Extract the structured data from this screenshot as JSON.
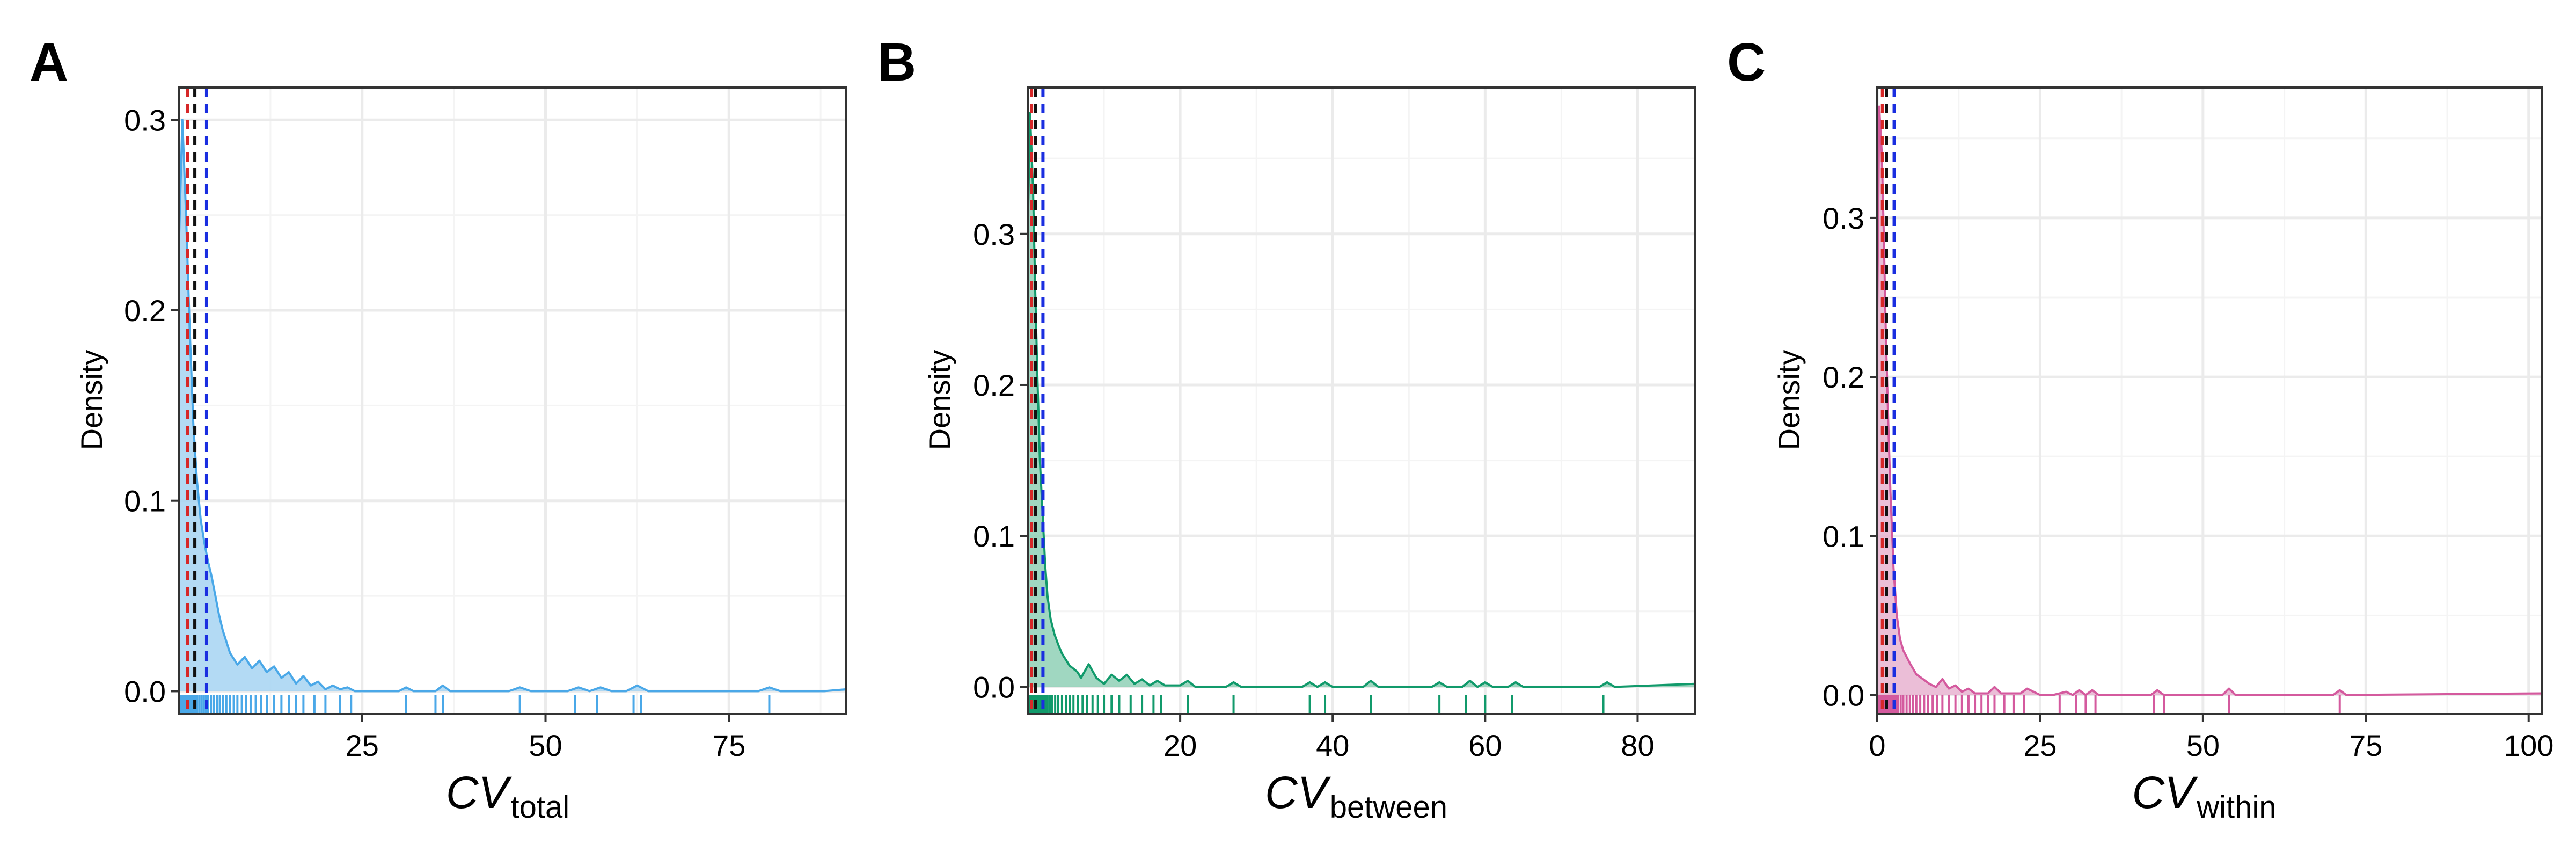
{
  "chart_data": [
    {
      "type": "area",
      "panel": "A",
      "ylabel": "Density",
      "xlabel": "CV",
      "xlabel_sub": "total",
      "xlim": [
        0,
        91
      ],
      "ylim": [
        -0.012,
        0.317
      ],
      "xticks": [
        25,
        50,
        75
      ],
      "xticklabels": [
        "25",
        "50",
        "75"
      ],
      "yticks": [
        0.0,
        0.1,
        0.2,
        0.3
      ],
      "yticklabels": [
        "0.0",
        "0.1",
        "0.2",
        "0.3"
      ],
      "grid": true,
      "color": "#4aa8e8",
      "fill_color": "#a6d4f2",
      "density": {
        "x": [
          0,
          0.5,
          1,
          1.5,
          2,
          2.5,
          3,
          3.5,
          4,
          4.5,
          5,
          5.5,
          6,
          7,
          8,
          9,
          10,
          11,
          12,
          13,
          14,
          15,
          16,
          17,
          18,
          19,
          20,
          21,
          22,
          23,
          24,
          26,
          30,
          31,
          32,
          35,
          36,
          37,
          45,
          46.5,
          48,
          53,
          54.5,
          56,
          57.5,
          59,
          61,
          62.5,
          64,
          70,
          79,
          80.5,
          82,
          88,
          91
        ],
        "y": [
          0.23,
          0.3,
          0.25,
          0.19,
          0.14,
          0.11,
          0.09,
          0.078,
          0.068,
          0.06,
          0.05,
          0.04,
          0.032,
          0.02,
          0.014,
          0.018,
          0.012,
          0.016,
          0.01,
          0.013,
          0.007,
          0.01,
          0.004,
          0.008,
          0.003,
          0.005,
          0.001,
          0.003,
          0.001,
          0.002,
          0,
          0,
          0,
          0.002,
          0,
          0,
          0.003,
          0,
          0,
          0.002,
          0,
          0,
          0.002,
          0,
          0.002,
          0,
          0,
          0.003,
          0,
          0,
          0,
          0.002,
          0,
          0,
          0.001
        ]
      },
      "rug": [
        0.3,
        0.5,
        0.7,
        0.9,
        1.1,
        1.3,
        1.5,
        1.7,
        1.9,
        2.1,
        2.3,
        2.5,
        2.8,
        3.1,
        3.4,
        3.7,
        4.0,
        4.4,
        4.8,
        5.2,
        5.6,
        6.0,
        6.5,
        7.0,
        7.5,
        8.0,
        8.6,
        9.2,
        9.8,
        10.5,
        11.2,
        12.0,
        13.0,
        14.0,
        15.0,
        16.0,
        17.0,
        18.5,
        20.0,
        22.0,
        23.5,
        31,
        35,
        36,
        46.5,
        54,
        57,
        62,
        63,
        80.5
      ],
      "vlines": [
        {
          "x": 1.2,
          "color": "#d62728"
        },
        {
          "x": 2.2,
          "color": "#111111"
        },
        {
          "x": 3.8,
          "color": "#1a2ee0"
        }
      ]
    },
    {
      "type": "area",
      "panel": "B",
      "ylabel": "Density",
      "xlabel": "CV",
      "xlabel_sub": "between",
      "xlim": [
        0,
        87.5
      ],
      "ylim": [
        -0.018,
        0.397
      ],
      "xticks": [
        20,
        40,
        60,
        80
      ],
      "xticklabels": [
        "20",
        "40",
        "60",
        "80"
      ],
      "yticks": [
        0.0,
        0.1,
        0.2,
        0.3
      ],
      "yticklabels": [
        "0.0",
        "0.1",
        "0.2",
        "0.3"
      ],
      "grid": true,
      "color": "#119a6b",
      "fill_color": "#8fd0b6",
      "density": {
        "x": [
          0,
          0.3,
          0.7,
          1,
          1.3,
          1.6,
          2,
          2.3,
          2.6,
          3,
          3.5,
          4,
          4.5,
          5,
          5.5,
          6,
          6.5,
          7,
          8,
          9,
          10,
          11,
          12,
          13,
          14,
          15,
          16,
          17,
          18,
          20,
          21,
          22,
          26,
          27,
          28,
          36,
          37,
          38,
          39,
          40,
          44,
          45,
          46,
          53,
          54,
          55,
          57,
          58,
          59,
          60,
          61,
          63,
          64,
          65,
          75,
          76,
          77,
          87.5
        ],
        "y": [
          0.3,
          0.38,
          0.33,
          0.26,
          0.2,
          0.15,
          0.11,
          0.08,
          0.06,
          0.045,
          0.035,
          0.028,
          0.022,
          0.018,
          0.014,
          0.012,
          0.01,
          0.006,
          0.015,
          0.006,
          0.002,
          0.008,
          0.004,
          0.008,
          0.002,
          0.005,
          0.001,
          0.004,
          0.001,
          0.001,
          0.004,
          0,
          0,
          0.003,
          0,
          0,
          0.003,
          0,
          0.003,
          0,
          0,
          0.004,
          0,
          0,
          0.003,
          0,
          0,
          0.004,
          0,
          0.003,
          0,
          0,
          0.003,
          0,
          0,
          0.003,
          0,
          0.002
        ]
      },
      "rug": [
        0.2,
        0.4,
        0.6,
        0.8,
        1.0,
        1.2,
        1.4,
        1.6,
        1.8,
        2.0,
        2.3,
        2.6,
        2.9,
        3.2,
        3.6,
        4.0,
        4.5,
        5.0,
        5.5,
        6.0,
        6.6,
        7.2,
        7.8,
        8.5,
        9.2,
        10.0,
        11.0,
        12.0,
        13.5,
        15.0,
        16.5,
        17.5,
        21,
        27,
        37,
        39,
        45,
        54,
        57.5,
        60,
        63.5,
        75.5
      ],
      "vlines": [
        {
          "x": 0.5,
          "color": "#d62728"
        },
        {
          "x": 1.0,
          "color": "#111111"
        },
        {
          "x": 2.0,
          "color": "#1a2ee0"
        }
      ]
    },
    {
      "type": "area",
      "panel": "C",
      "ylabel": "Density",
      "xlabel": "CV",
      "xlabel_sub": "within",
      "xlim": [
        0,
        102
      ],
      "ylim": [
        -0.012,
        0.382
      ],
      "xticks": [
        0,
        25,
        50,
        75,
        100
      ],
      "xticklabels": [
        "0",
        "25",
        "50",
        "75",
        "100"
      ],
      "yticks": [
        0.0,
        0.1,
        0.2,
        0.3
      ],
      "yticklabels": [
        "0.0",
        "0.1",
        "0.2",
        "0.3"
      ],
      "grid": true,
      "color": "#d45a9e",
      "fill_color": "#e7b3d0",
      "density": {
        "x": [
          0,
          0.3,
          0.7,
          1,
          1.3,
          1.7,
          2,
          2.5,
          3,
          3.5,
          4,
          5,
          6,
          7,
          8,
          9,
          10,
          11,
          12,
          13,
          14,
          15,
          17,
          18,
          19,
          22,
          23,
          25,
          27,
          29,
          30,
          31,
          32,
          33,
          34,
          35,
          42,
          43,
          44,
          53,
          54,
          55,
          70,
          71,
          72,
          102
        ],
        "y": [
          0.24,
          0.37,
          0.34,
          0.29,
          0.23,
          0.17,
          0.13,
          0.08,
          0.05,
          0.035,
          0.028,
          0.02,
          0.013,
          0.01,
          0.007,
          0.005,
          0.01,
          0.004,
          0.006,
          0.002,
          0.004,
          0.001,
          0.001,
          0.005,
          0.001,
          0.001,
          0.004,
          0,
          0,
          0.002,
          0,
          0.003,
          0,
          0.003,
          0,
          0,
          0,
          0.003,
          0,
          0,
          0.004,
          0,
          0,
          0.003,
          0,
          0.001
        ]
      },
      "rug": [
        0.2,
        0.4,
        0.6,
        0.8,
        1.0,
        1.2,
        1.4,
        1.6,
        1.8,
        2.0,
        2.3,
        2.6,
        2.9,
        3.2,
        3.6,
        4.0,
        4.5,
        5.0,
        5.5,
        6.0,
        6.6,
        7.2,
        7.8,
        8.5,
        9.2,
        10.0,
        11.0,
        12.0,
        13.0,
        14.0,
        15.0,
        16.0,
        17.0,
        18.0,
        19.5,
        21.0,
        22.5,
        28,
        30.5,
        32,
        33.5,
        42.5,
        44,
        54,
        71
      ],
      "vlines": [
        {
          "x": 0.8,
          "color": "#d62728"
        },
        {
          "x": 1.4,
          "color": "#111111"
        },
        {
          "x": 2.6,
          "color": "#1a2ee0"
        }
      ]
    }
  ]
}
